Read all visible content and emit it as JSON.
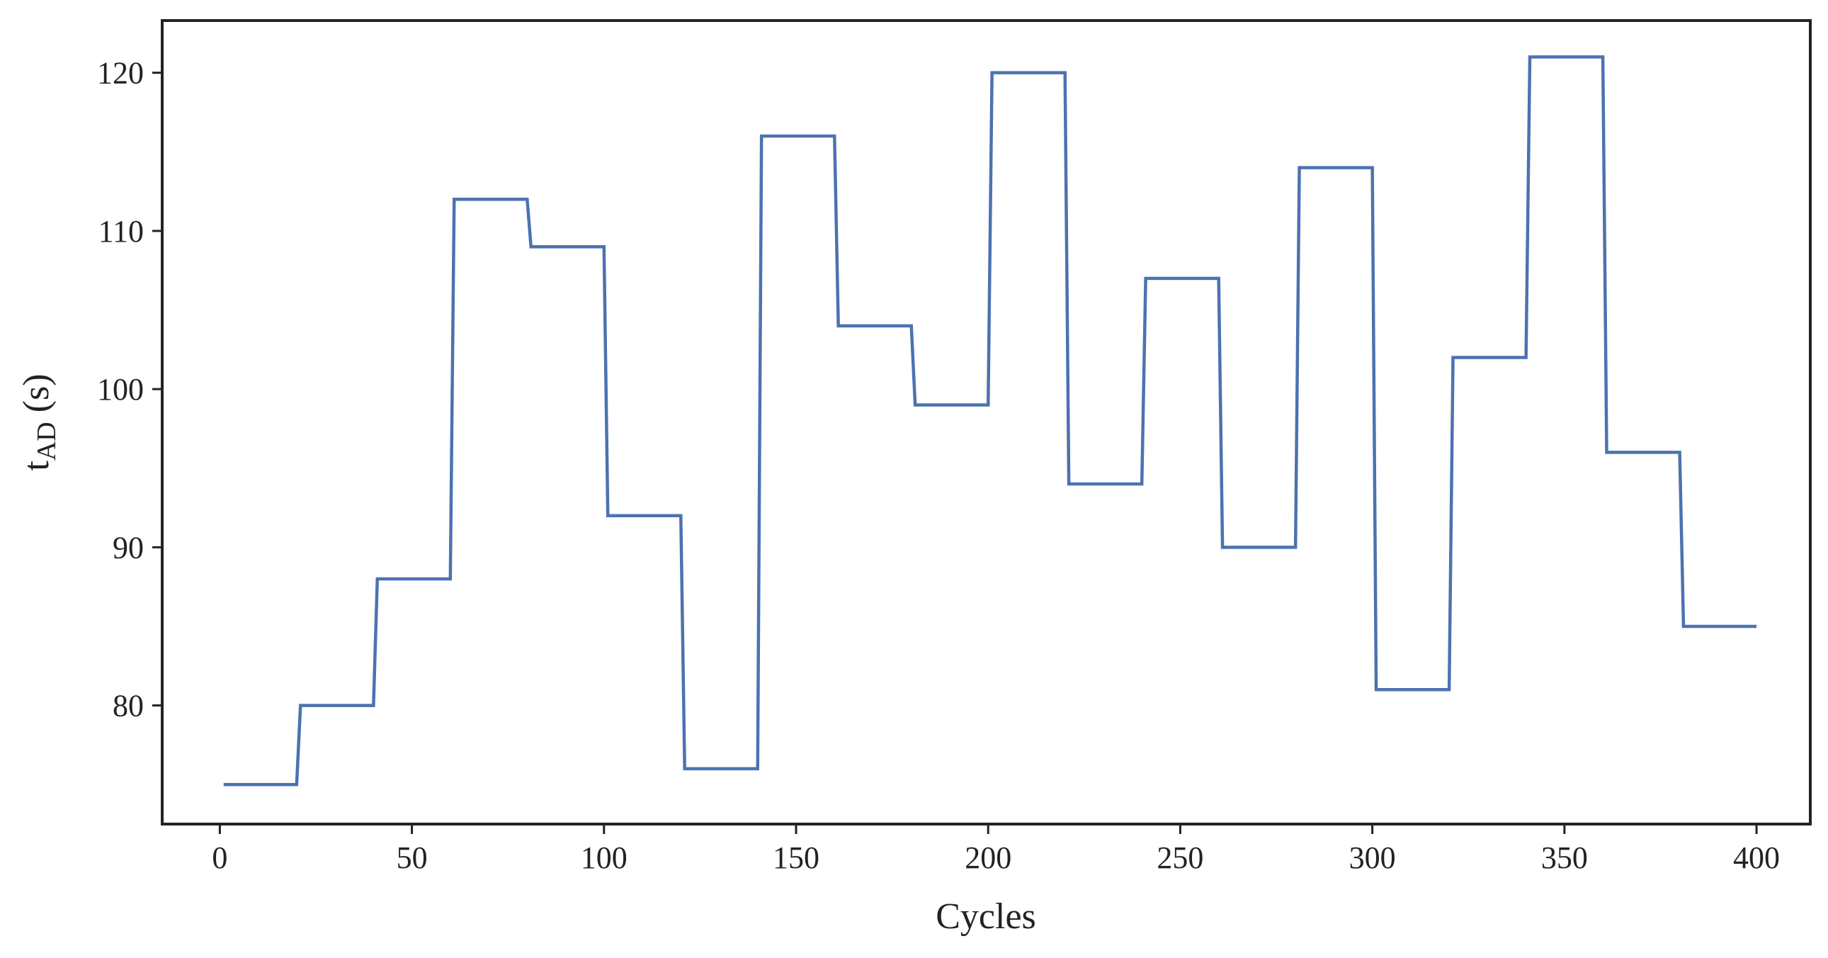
{
  "colors": {
    "series": "#4c72b0",
    "axis": "#222222",
    "background": "#ffffff"
  },
  "chart_data": {
    "type": "line",
    "title": "",
    "xlabel": "Cycles",
    "ylabel_main": "t",
    "ylabel_sub": "AD",
    "ylabel_unit": " (s)",
    "xlim": [
      -15,
      414
    ],
    "ylim": [
      72.5,
      123.3
    ],
    "xticks": [
      0,
      50,
      100,
      150,
      200,
      250,
      300,
      350,
      400
    ],
    "yticks": [
      80,
      90,
      100,
      110,
      120
    ],
    "grid": false,
    "legend": "none",
    "series": [
      {
        "x": [
          1,
          20,
          21,
          40,
          41,
          60,
          61,
          80,
          81,
          100,
          101,
          120,
          121,
          140,
          141,
          160,
          161,
          180,
          181,
          200,
          201,
          220,
          221,
          240,
          241,
          260,
          261,
          280,
          281,
          300,
          301,
          320,
          321,
          340,
          341,
          360,
          361,
          380,
          381,
          400
        ],
        "y": [
          75,
          75,
          80,
          80,
          88,
          88,
          112,
          112,
          109,
          109,
          92,
          92,
          76,
          76,
          116,
          116,
          104,
          104,
          99,
          99,
          120,
          120,
          94,
          94,
          107,
          107,
          90,
          90,
          114,
          114,
          81,
          81,
          102,
          102,
          121,
          121,
          96,
          96,
          85,
          85
        ]
      }
    ]
  }
}
